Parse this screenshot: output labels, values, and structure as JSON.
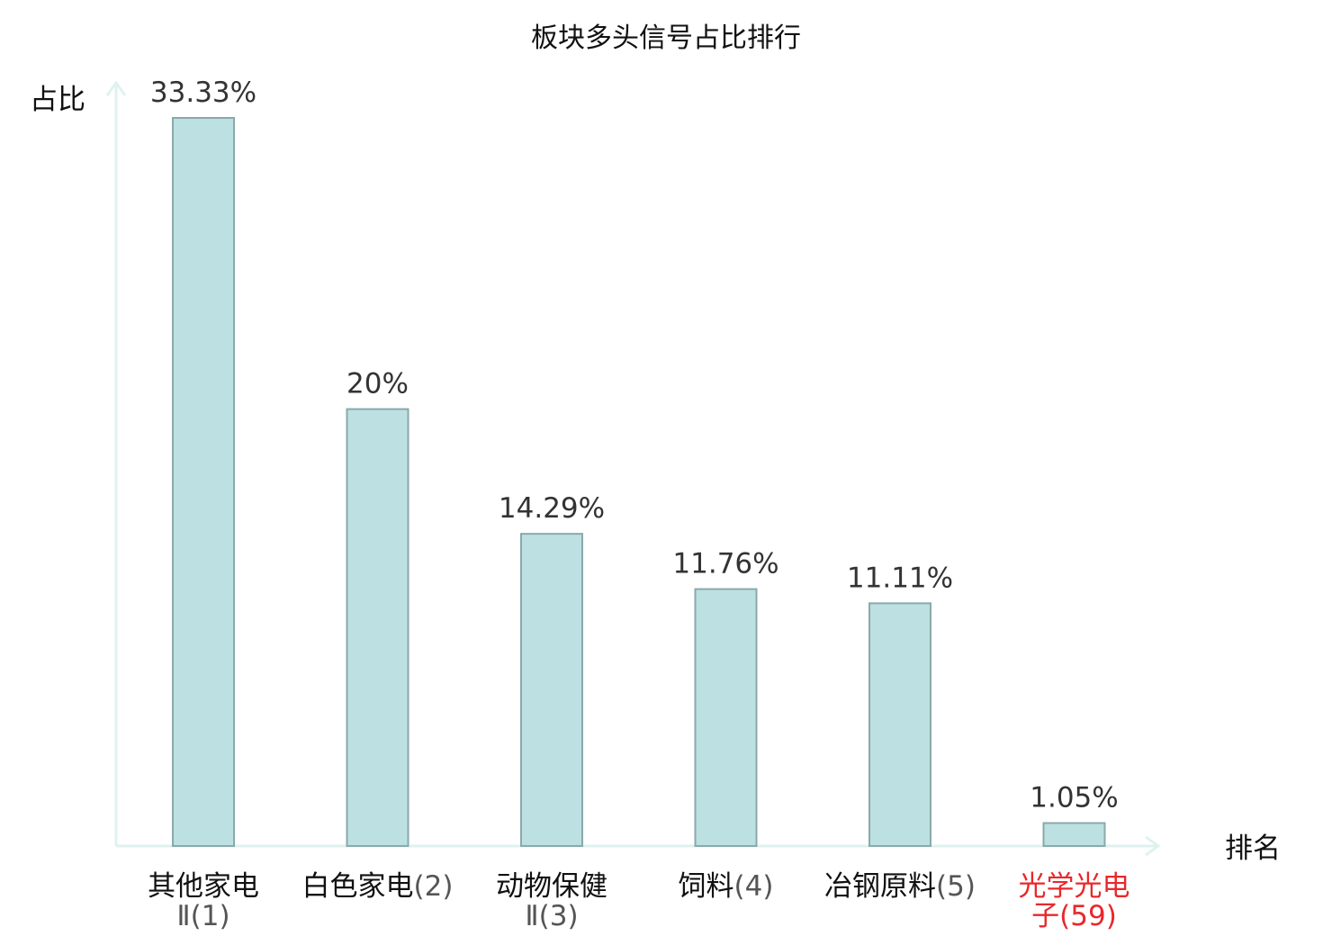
{
  "chart_data": {
    "type": "bar",
    "title": "板块多头信号占比排行",
    "ylabel": "占比",
    "xlabel": "排名",
    "ylim": [
      0,
      35
    ],
    "grid": false,
    "legend": "none",
    "value_suffix": "%",
    "categories": [
      {
        "lines": [
          {
            "name": "其他家电",
            "rank": ""
          },
          {
            "name": "",
            "rank": "Ⅱ(1)"
          }
        ],
        "highlight": false
      },
      {
        "lines": [
          {
            "name": "白色家电",
            "rank": "(2)"
          }
        ],
        "highlight": false
      },
      {
        "lines": [
          {
            "name": "动物保健",
            "rank": ""
          },
          {
            "name": "",
            "rank": "Ⅱ(3)"
          }
        ],
        "highlight": false
      },
      {
        "lines": [
          {
            "name": "饲料",
            "rank": "(4)"
          }
        ],
        "highlight": false
      },
      {
        "lines": [
          {
            "name": "冶钢原料",
            "rank": "(5)"
          }
        ],
        "highlight": false
      },
      {
        "lines": [
          {
            "name": "光学光电",
            "rank": ""
          },
          {
            "name": "子",
            "rank": "(59)"
          }
        ],
        "highlight": true
      }
    ],
    "values": [
      33.33,
      20,
      14.29,
      11.76,
      11.11,
      1.05
    ],
    "value_labels": [
      "33.33%",
      "20%",
      "14.29%",
      "11.76%",
      "11.11%",
      "1.05%"
    ],
    "colors": {
      "bar_fill": "#bde0e2",
      "bar_stroke": "#8aa9ab",
      "axis": "#dff2ef",
      "highlight_text": "#e8282b"
    }
  }
}
